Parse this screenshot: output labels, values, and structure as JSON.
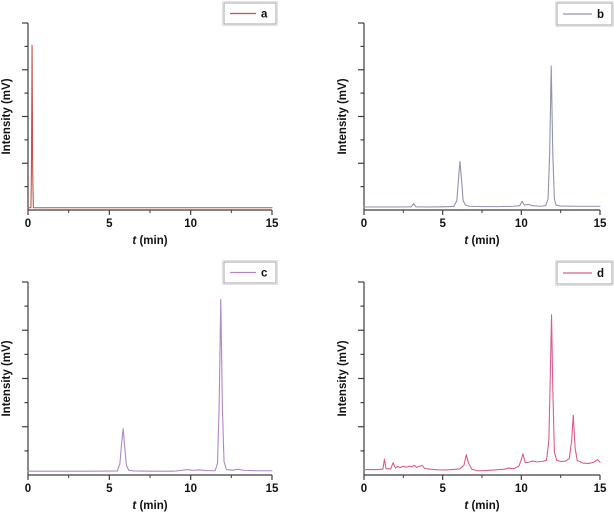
{
  "figure": {
    "background": "#ffffff",
    "axis_color": "#3d3d3d",
    "text_color": "#111111",
    "legend_border_color": "#a6a6a6",
    "legend_outer_border_color": "#e3e3e3",
    "layout_note": "2x2 grid of chromatogram panels"
  },
  "chart_data": [
    {
      "type": "line",
      "panel": "a",
      "legend_label": "a",
      "line_color": "#c5524c",
      "xlabel_italic": "t",
      "xlabel_rest": " (min)",
      "ylabel": "Intensity (mV)",
      "xlim": [
        0,
        15
      ],
      "x_major_tick_values": [
        0,
        5,
        10,
        15
      ],
      "x_minor_tick_values": [
        2.5,
        7.5,
        12.5
      ],
      "ylim": [
        0,
        100
      ],
      "y_ticks_labeled": false,
      "grid": false,
      "legend_position": "top-right",
      "peaks": [
        {
          "t_min": 0.25,
          "height_pct": 88
        }
      ],
      "points": [
        [
          0,
          1.2
        ],
        [
          0.18,
          1.2
        ],
        [
          0.21,
          20
        ],
        [
          0.25,
          88
        ],
        [
          0.29,
          20
        ],
        [
          0.33,
          1.2
        ],
        [
          2,
          1.2
        ],
        [
          5,
          1.2
        ],
        [
          8,
          1.2
        ],
        [
          11,
          1.2
        ],
        [
          15,
          1.2
        ]
      ]
    },
    {
      "type": "line",
      "panel": "b",
      "legend_label": "b",
      "line_color": "#9193ae",
      "xlabel_italic": "t",
      "xlabel_rest": " (min)",
      "ylabel": "Intensity (mV)",
      "xlim": [
        0,
        15
      ],
      "x_major_tick_values": [
        0,
        5,
        10,
        15
      ],
      "x_minor_tick_values": [
        2.5,
        7.5,
        12.5
      ],
      "ylim": [
        0,
        100
      ],
      "y_ticks_labeled": false,
      "grid": false,
      "legend_position": "top-right",
      "peaks": [
        {
          "t_min": 3.15,
          "height_pct": 3.4
        },
        {
          "t_min": 6.1,
          "height_pct": 26
        },
        {
          "t_min": 10.05,
          "height_pct": 4.6
        },
        {
          "t_min": 11.9,
          "height_pct": 77
        }
      ],
      "points": [
        [
          0,
          1.6
        ],
        [
          1,
          1.6
        ],
        [
          2,
          1.6
        ],
        [
          3.0,
          1.7
        ],
        [
          3.15,
          3.4
        ],
        [
          3.3,
          1.7
        ],
        [
          4,
          1.6
        ],
        [
          5,
          1.7
        ],
        [
          5.7,
          1.9
        ],
        [
          5.9,
          5
        ],
        [
          6.0,
          16
        ],
        [
          6.1,
          26
        ],
        [
          6.2,
          16
        ],
        [
          6.3,
          5
        ],
        [
          6.45,
          2.6
        ],
        [
          6.7,
          2.0
        ],
        [
          7.5,
          1.8
        ],
        [
          8.5,
          1.8
        ],
        [
          9.5,
          2.0
        ],
        [
          9.9,
          2.3
        ],
        [
          10.05,
          4.6
        ],
        [
          10.2,
          2.6
        ],
        [
          10.45,
          3.0
        ],
        [
          10.7,
          2.3
        ],
        [
          11.2,
          2.0
        ],
        [
          11.55,
          2.3
        ],
        [
          11.7,
          6
        ],
        [
          11.8,
          30
        ],
        [
          11.9,
          77
        ],
        [
          12.0,
          30
        ],
        [
          12.1,
          6
        ],
        [
          12.2,
          2.6
        ],
        [
          12.5,
          2.1
        ],
        [
          13.5,
          2.0
        ],
        [
          15,
          2.0
        ]
      ]
    },
    {
      "type": "line",
      "panel": "c",
      "legend_label": "c",
      "line_color": "#b286c5",
      "xlabel_italic": "t",
      "xlabel_rest": " (min)",
      "ylabel": "Intensity (mV)",
      "xlim": [
        0,
        15
      ],
      "x_major_tick_values": [
        0,
        5,
        10,
        15
      ],
      "x_minor_tick_values": [
        2.5,
        7.5,
        12.5
      ],
      "ylim": [
        0,
        100
      ],
      "y_ticks_labeled": false,
      "grid": false,
      "legend_position": "top-right",
      "peaks": [
        {
          "t_min": 5.85,
          "height_pct": 24
        },
        {
          "t_min": 11.85,
          "height_pct": 91
        }
      ],
      "points": [
        [
          0,
          2.0
        ],
        [
          1,
          2.0
        ],
        [
          2.5,
          2.0
        ],
        [
          4,
          2.0
        ],
        [
          5.5,
          2.1
        ],
        [
          5.65,
          6
        ],
        [
          5.75,
          16
        ],
        [
          5.85,
          24
        ],
        [
          5.95,
          14
        ],
        [
          6.05,
          5
        ],
        [
          6.2,
          2.4
        ],
        [
          6.5,
          2.1
        ],
        [
          7.5,
          2.0
        ],
        [
          9.0,
          2.0
        ],
        [
          9.85,
          2.8
        ],
        [
          10.1,
          2.4
        ],
        [
          10.5,
          2.7
        ],
        [
          10.9,
          2.3
        ],
        [
          11.5,
          2.2
        ],
        [
          11.65,
          6
        ],
        [
          11.75,
          35
        ],
        [
          11.85,
          91
        ],
        [
          11.95,
          35
        ],
        [
          12.05,
          7
        ],
        [
          12.2,
          2.8
        ],
        [
          12.6,
          2.5
        ],
        [
          12.9,
          3.0
        ],
        [
          13.3,
          2.4
        ],
        [
          14,
          2.2
        ],
        [
          15,
          2.2
        ]
      ]
    },
    {
      "type": "line",
      "panel": "d",
      "legend_label": "d",
      "line_color": "#dc5c8e",
      "xlabel_italic": "t",
      "xlabel_rest": " (min)",
      "ylabel": "Intensity (mV)",
      "xlim": [
        0,
        15
      ],
      "x_major_tick_values": [
        0,
        5,
        10,
        15
      ],
      "x_minor_tick_values": [
        2.5,
        7.5,
        12.5
      ],
      "ylim": [
        0,
        100
      ],
      "y_ticks_labeled": false,
      "grid": false,
      "legend_position": "top-right",
      "peaks": [
        {
          "t_min": 1.3,
          "height_pct": 8.2
        },
        {
          "t_min": 1.85,
          "height_pct": 6.4
        },
        {
          "t_min": 6.5,
          "height_pct": 10.5
        },
        {
          "t_min": 10.1,
          "height_pct": 11
        },
        {
          "t_min": 11.92,
          "height_pct": 83
        },
        {
          "t_min": 13.3,
          "height_pct": 31
        }
      ],
      "points": [
        [
          0,
          2.8
        ],
        [
          0.8,
          2.8
        ],
        [
          1.2,
          3.0
        ],
        [
          1.3,
          8.2
        ],
        [
          1.4,
          3.2
        ],
        [
          1.7,
          3.2
        ],
        [
          1.85,
          6.4
        ],
        [
          2.0,
          3.6
        ],
        [
          2.15,
          4.4
        ],
        [
          2.3,
          3.8
        ],
        [
          2.5,
          4.6
        ],
        [
          2.7,
          4.0
        ],
        [
          2.9,
          4.6
        ],
        [
          3.05,
          4.2
        ],
        [
          3.2,
          5.0
        ],
        [
          3.35,
          4.0
        ],
        [
          3.55,
          4.6
        ],
        [
          3.7,
          5.0
        ],
        [
          3.85,
          3.4
        ],
        [
          4.2,
          3.0
        ],
        [
          4.7,
          2.7
        ],
        [
          5.2,
          2.6
        ],
        [
          5.7,
          2.9
        ],
        [
          6.1,
          3.2
        ],
        [
          6.35,
          5
        ],
        [
          6.5,
          10.5
        ],
        [
          6.65,
          6
        ],
        [
          6.85,
          3.0
        ],
        [
          7.2,
          2.2
        ],
        [
          7.7,
          2.3
        ],
        [
          8.3,
          2.6
        ],
        [
          8.9,
          3.0
        ],
        [
          9.2,
          3.6
        ],
        [
          9.5,
          3.2
        ],
        [
          9.85,
          4.6
        ],
        [
          10.0,
          8
        ],
        [
          10.1,
          11
        ],
        [
          10.25,
          6.4
        ],
        [
          10.45,
          6.6
        ],
        [
          10.7,
          7.2
        ],
        [
          11.0,
          6.8
        ],
        [
          11.3,
          7.0
        ],
        [
          11.6,
          7.6
        ],
        [
          11.75,
          18
        ],
        [
          11.85,
          55
        ],
        [
          11.92,
          83
        ],
        [
          12.0,
          45
        ],
        [
          12.1,
          12
        ],
        [
          12.25,
          7.6
        ],
        [
          12.5,
          7.0
        ],
        [
          12.8,
          7.2
        ],
        [
          13.05,
          8.5
        ],
        [
          13.2,
          18
        ],
        [
          13.3,
          31
        ],
        [
          13.42,
          14
        ],
        [
          13.55,
          7.5
        ],
        [
          13.9,
          6.2
        ],
        [
          14.3,
          6.0
        ],
        [
          14.6,
          6.6
        ],
        [
          14.85,
          8.0
        ],
        [
          15,
          6.6
        ]
      ]
    }
  ]
}
